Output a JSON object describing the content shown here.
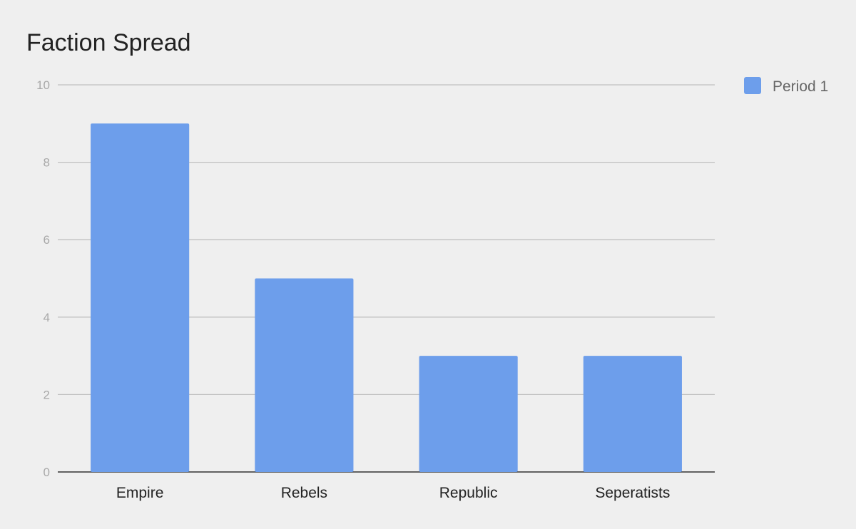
{
  "chart_data": {
    "type": "bar",
    "title": "Faction Spread",
    "xlabel": "",
    "ylabel": "",
    "categories": [
      "Empire",
      "Rebels",
      "Republic",
      "Seperatists"
    ],
    "series": [
      {
        "name": "Period 1",
        "values": [
          9,
          5,
          3,
          3
        ],
        "color": "#6d9eeb"
      }
    ],
    "ylim": [
      0,
      10
    ],
    "yticks": [
      "0",
      "2",
      "4",
      "6",
      "8",
      "10"
    ],
    "grid": true,
    "legend": "right",
    "colors": {
      "background": "#efefef",
      "grid": "#c0c0c0",
      "axis": "#333333",
      "tick_label": "#a8a8a8"
    }
  }
}
